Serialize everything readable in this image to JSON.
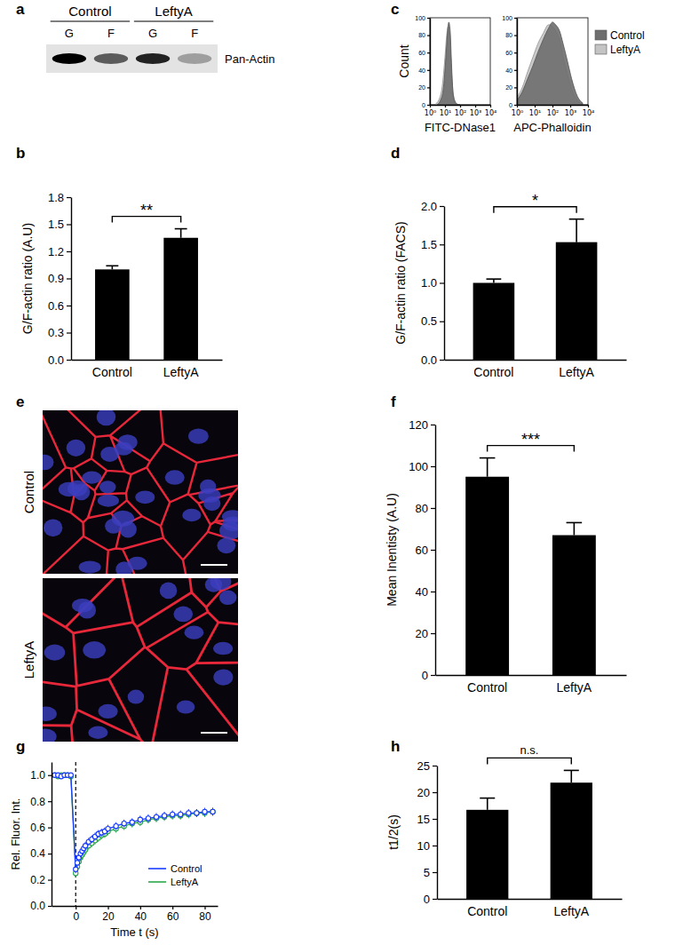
{
  "chart_data": [
    {
      "type": "blot",
      "panel": "a",
      "groups": [
        "Control",
        "LeftyA"
      ],
      "lanes": [
        "G",
        "F",
        "G",
        "F"
      ],
      "band_label": "Pan-Actin",
      "values": [
        1.0,
        0.6,
        0.85,
        0.3
      ]
    },
    {
      "type": "bar",
      "panel": "b",
      "y_label": "G/F-actin ratio (A.U)",
      "categories": [
        "Control",
        "LeftyA"
      ],
      "values": [
        1.0,
        1.35
      ],
      "errors": [
        0.04,
        0.1
      ],
      "color": "#000000",
      "ylim": [
        0,
        1.8
      ],
      "yticks": [
        {
          "value": 0,
          "label": "0.0"
        },
        {
          "value": 0.3,
          "label": "0.3"
        },
        {
          "value": 0.6,
          "label": "0.6"
        },
        {
          "value": 0.9,
          "label": "0.9"
        },
        {
          "value": 1.2,
          "label": "1.2"
        },
        {
          "value": 1.5,
          "label": "1.5"
        },
        {
          "value": 1.8,
          "label": "1.8"
        }
      ],
      "annotations": [
        "**"
      ]
    },
    {
      "type": "area",
      "panel": "c",
      "y_label": "Count",
      "x_label": "FITC-DNase1",
      "log": "x",
      "xlim": [
        1,
        10000
      ],
      "xticks": [
        {
          "value": 1,
          "label": "10⁰"
        },
        {
          "value": 10,
          "label": "10¹"
        },
        {
          "value": 100,
          "label": "10²"
        },
        {
          "value": 1000,
          "label": "10³"
        },
        {
          "value": 10000,
          "label": "10⁴"
        }
      ],
      "ylim": [
        0,
        100
      ],
      "yticks": [
        0,
        20,
        40,
        60,
        80,
        100
      ],
      "series": [
        {
          "name": "Control",
          "color": "#6e6e6e",
          "x": [
            3,
            5,
            8,
            12,
            15,
            18,
            20,
            23,
            26,
            30,
            35,
            45,
            60,
            100
          ],
          "values": [
            0,
            5,
            20,
            60,
            85,
            95,
            92,
            80,
            55,
            30,
            12,
            4,
            1,
            0
          ]
        },
        {
          "name": "LeftyA",
          "color": "#c4c4c4",
          "x": [
            2,
            4,
            7,
            10,
            13,
            16,
            19,
            22,
            26,
            30,
            40,
            55,
            80
          ],
          "values": [
            0,
            6,
            25,
            55,
            80,
            90,
            85,
            70,
            45,
            25,
            8,
            2,
            0
          ]
        }
      ]
    },
    {
      "type": "area",
      "x_label": "APC-Phalloidin",
      "log": "x",
      "xlim": [
        1,
        10000
      ],
      "legend": "right",
      "xticks": [
        {
          "value": 1,
          "label": "10⁰"
        },
        {
          "value": 10,
          "label": "10¹"
        },
        {
          "value": 100,
          "label": "10²"
        },
        {
          "value": 1000,
          "label": "10³"
        },
        {
          "value": 10000,
          "label": "10⁴"
        }
      ],
      "ylim": [
        0,
        100
      ],
      "yticks": [
        0,
        20,
        40,
        60,
        80,
        100
      ],
      "series": [
        {
          "name": "Control",
          "color": "#6e6e6e",
          "x": [
            1,
            2,
            4,
            8,
            15,
            30,
            60,
            100,
            150,
            250,
            400,
            700,
            1200,
            2500,
            5000
          ],
          "values": [
            5,
            15,
            30,
            45,
            60,
            75,
            88,
            95,
            92,
            85,
            70,
            50,
            30,
            10,
            2
          ]
        },
        {
          "name": "LeftyA",
          "color": "#c4c4c4",
          "x": [
            1,
            2,
            4,
            8,
            15,
            30,
            60,
            100,
            150,
            250,
            400,
            700,
            1200,
            2500,
            5000
          ],
          "values": [
            8,
            20,
            38,
            55,
            70,
            82,
            92,
            90,
            85,
            75,
            55,
            35,
            18,
            5,
            1
          ]
        }
      ]
    },
    {
      "type": "bar",
      "panel": "d",
      "y_label": "G/F-actin ratio (FACS)",
      "categories": [
        "Control",
        "LeftyA"
      ],
      "values": [
        1.0,
        1.53
      ],
      "errors": [
        0.05,
        0.3
      ],
      "color": "#000000",
      "ylim": [
        0,
        2
      ],
      "yticks": [
        {
          "value": 0,
          "label": "0.0"
        },
        {
          "value": 0.5,
          "label": "0.5"
        },
        {
          "value": 1,
          "label": "1.0"
        },
        {
          "value": 1.5,
          "label": "1.5"
        },
        {
          "value": 2,
          "label": "2.0"
        }
      ],
      "annotations": [
        "*"
      ]
    },
    {
      "type": "image",
      "panel": "e",
      "rows": [
        "Control",
        "LeftyA"
      ]
    },
    {
      "type": "bar",
      "panel": "f",
      "y_label": "Mean Inentisty (A.U)",
      "categories": [
        "Control",
        "LeftyA"
      ],
      "values": [
        95,
        67
      ],
      "errors": [
        9,
        6
      ],
      "color": "#000000",
      "ylim": [
        0,
        120
      ],
      "yticks": [
        0,
        20,
        40,
        60,
        80,
        100,
        120
      ],
      "annotations": [
        "***"
      ]
    },
    {
      "type": "line",
      "panel": "g",
      "x_label": "Time t (s)",
      "y_label": "Rel. Fluor. Int.",
      "legend": "lower right",
      "marker": "circle",
      "vline": 0,
      "x": [
        -13,
        -11,
        -9,
        -7,
        -5,
        -3,
        0,
        1,
        2,
        3,
        4,
        5,
        6,
        8,
        10,
        12,
        14,
        16,
        18,
        20,
        25,
        30,
        35,
        40,
        45,
        50,
        55,
        60,
        65,
        70,
        75,
        80,
        85
      ],
      "xlim": [
        -15,
        88
      ],
      "xticks": [
        0,
        20,
        40,
        60,
        80
      ],
      "ylim": [
        0,
        1.1
      ],
      "yticks": [
        {
          "value": 0,
          "label": "0.0"
        },
        {
          "value": 0.2,
          "label": "0.2"
        },
        {
          "value": 0.4,
          "label": "0.4"
        },
        {
          "value": 0.6,
          "label": "0.6"
        },
        {
          "value": 0.8,
          "label": "0.8"
        },
        {
          "value": 1,
          "label": "1.0"
        }
      ],
      "series": [
        {
          "name": "Control",
          "color": "#1a3cff",
          "values": [
            1.0,
            1.0,
            0.99,
            1.0,
            1.0,
            1.0,
            0.28,
            0.33,
            0.37,
            0.4,
            0.42,
            0.44,
            0.46,
            0.49,
            0.51,
            0.53,
            0.55,
            0.56,
            0.57,
            0.59,
            0.61,
            0.63,
            0.64,
            0.66,
            0.67,
            0.68,
            0.69,
            0.7,
            0.7,
            0.71,
            0.71,
            0.72,
            0.72
          ],
          "errors": [
            0.01,
            0.01,
            0.01,
            0.01,
            0.01,
            0.01,
            0.03,
            0.03,
            0.03,
            0.03,
            0.03,
            0.03,
            0.03,
            0.03,
            0.03,
            0.03,
            0.03,
            0.03,
            0.03,
            0.03,
            0.03,
            0.03,
            0.03,
            0.03,
            0.03,
            0.03,
            0.03,
            0.03,
            0.03,
            0.03,
            0.03,
            0.03,
            0.03
          ]
        },
        {
          "name": "LeftyA",
          "color": "#2aa84a",
          "values": [
            1.0,
            0.99,
            1.0,
            1.0,
            1.0,
            0.99,
            0.25,
            0.3,
            0.34,
            0.37,
            0.39,
            0.41,
            0.43,
            0.46,
            0.48,
            0.5,
            0.52,
            0.54,
            0.55,
            0.57,
            0.59,
            0.61,
            0.63,
            0.64,
            0.66,
            0.67,
            0.68,
            0.69,
            0.69,
            0.7,
            0.71,
            0.71,
            0.72
          ],
          "errors": [
            0.01,
            0.01,
            0.01,
            0.01,
            0.01,
            0.01,
            0.03,
            0.03,
            0.03,
            0.03,
            0.03,
            0.03,
            0.03,
            0.03,
            0.03,
            0.03,
            0.03,
            0.03,
            0.03,
            0.03,
            0.03,
            0.03,
            0.03,
            0.03,
            0.03,
            0.03,
            0.03,
            0.03,
            0.03,
            0.03,
            0.03,
            0.03,
            0.03
          ]
        }
      ]
    },
    {
      "type": "bar",
      "panel": "h",
      "y_label": "t1/2(s)",
      "categories": [
        "Control",
        "LeftyA"
      ],
      "values": [
        16.7,
        21.8
      ],
      "errors": [
        2.2,
        2.3
      ],
      "color": "#000000",
      "ylim": [
        0,
        25
      ],
      "yticks": [
        0,
        5,
        10,
        15,
        20,
        25
      ],
      "annotations": [
        "n.s."
      ]
    }
  ]
}
